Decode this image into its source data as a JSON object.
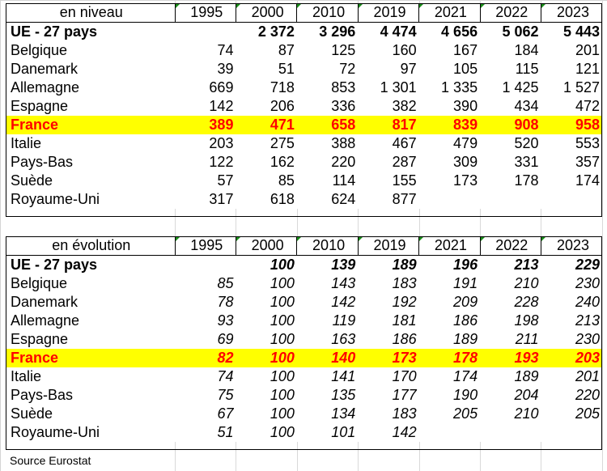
{
  "niveau": {
    "header_label": "en niveau",
    "years": [
      "1995",
      "2000",
      "2010",
      "2019",
      "2021",
      "2022",
      "2023"
    ],
    "rows": [
      {
        "name": "UE - 27 pays",
        "values": [
          "",
          "2 372",
          "3 296",
          "4 474",
          "4 656",
          "5 062",
          "5 443"
        ]
      },
      {
        "name": "Belgique",
        "values": [
          "74",
          "87",
          "125",
          "160",
          "167",
          "184",
          "201"
        ]
      },
      {
        "name": "Danemark",
        "values": [
          "39",
          "51",
          "72",
          "97",
          "105",
          "115",
          "121"
        ]
      },
      {
        "name": "Allemagne",
        "values": [
          "669",
          "718",
          "853",
          "1 301",
          "1 335",
          "1 425",
          "1 527"
        ]
      },
      {
        "name": "Espagne",
        "values": [
          "142",
          "206",
          "336",
          "382",
          "390",
          "434",
          "472"
        ]
      },
      {
        "name": "France",
        "values": [
          "389",
          "471",
          "658",
          "817",
          "839",
          "908",
          "958"
        ]
      },
      {
        "name": "Italie",
        "values": [
          "203",
          "275",
          "388",
          "467",
          "479",
          "520",
          "553"
        ]
      },
      {
        "name": "Pays-Bas",
        "values": [
          "122",
          "162",
          "220",
          "287",
          "309",
          "331",
          "357"
        ]
      },
      {
        "name": "Suède",
        "values": [
          "57",
          "85",
          "114",
          "155",
          "173",
          "178",
          "174"
        ]
      },
      {
        "name": "Royaume-Uni",
        "values": [
          "317",
          "618",
          "624",
          "877",
          "",
          "",
          ""
        ]
      }
    ]
  },
  "evolution": {
    "header_label": "en évolution",
    "years": [
      "1995",
      "2000",
      "2010",
      "2019",
      "2021",
      "2022",
      "2023"
    ],
    "rows": [
      {
        "name": "UE - 27 pays",
        "values": [
          "",
          "100",
          "139",
          "189",
          "196",
          "213",
          "229"
        ]
      },
      {
        "name": "Belgique",
        "values": [
          "85",
          "100",
          "143",
          "183",
          "191",
          "210",
          "230"
        ]
      },
      {
        "name": "Danemark",
        "values": [
          "78",
          "100",
          "142",
          "192",
          "209",
          "228",
          "240"
        ]
      },
      {
        "name": "Allemagne",
        "values": [
          "93",
          "100",
          "119",
          "181",
          "186",
          "198",
          "213"
        ]
      },
      {
        "name": "Espagne",
        "values": [
          "69",
          "100",
          "163",
          "186",
          "189",
          "211",
          "230"
        ]
      },
      {
        "name": "France",
        "values": [
          "82",
          "100",
          "140",
          "173",
          "178",
          "193",
          "203"
        ]
      },
      {
        "name": "Italie",
        "values": [
          "74",
          "100",
          "141",
          "170",
          "174",
          "189",
          "201"
        ]
      },
      {
        "name": "Pays-Bas",
        "values": [
          "75",
          "100",
          "135",
          "177",
          "190",
          "204",
          "220"
        ]
      },
      {
        "name": "Suède",
        "values": [
          "67",
          "100",
          "134",
          "183",
          "205",
          "210",
          "205"
        ]
      },
      {
        "name": "Royaume-Uni",
        "values": [
          "51",
          "100",
          "101",
          "142",
          "",
          "",
          ""
        ]
      }
    ]
  },
  "source": "Source Eurostat",
  "colors": {
    "highlight": "#ffff00",
    "highlight_text": "#ff0000",
    "marker": "#1a8c1a"
  }
}
